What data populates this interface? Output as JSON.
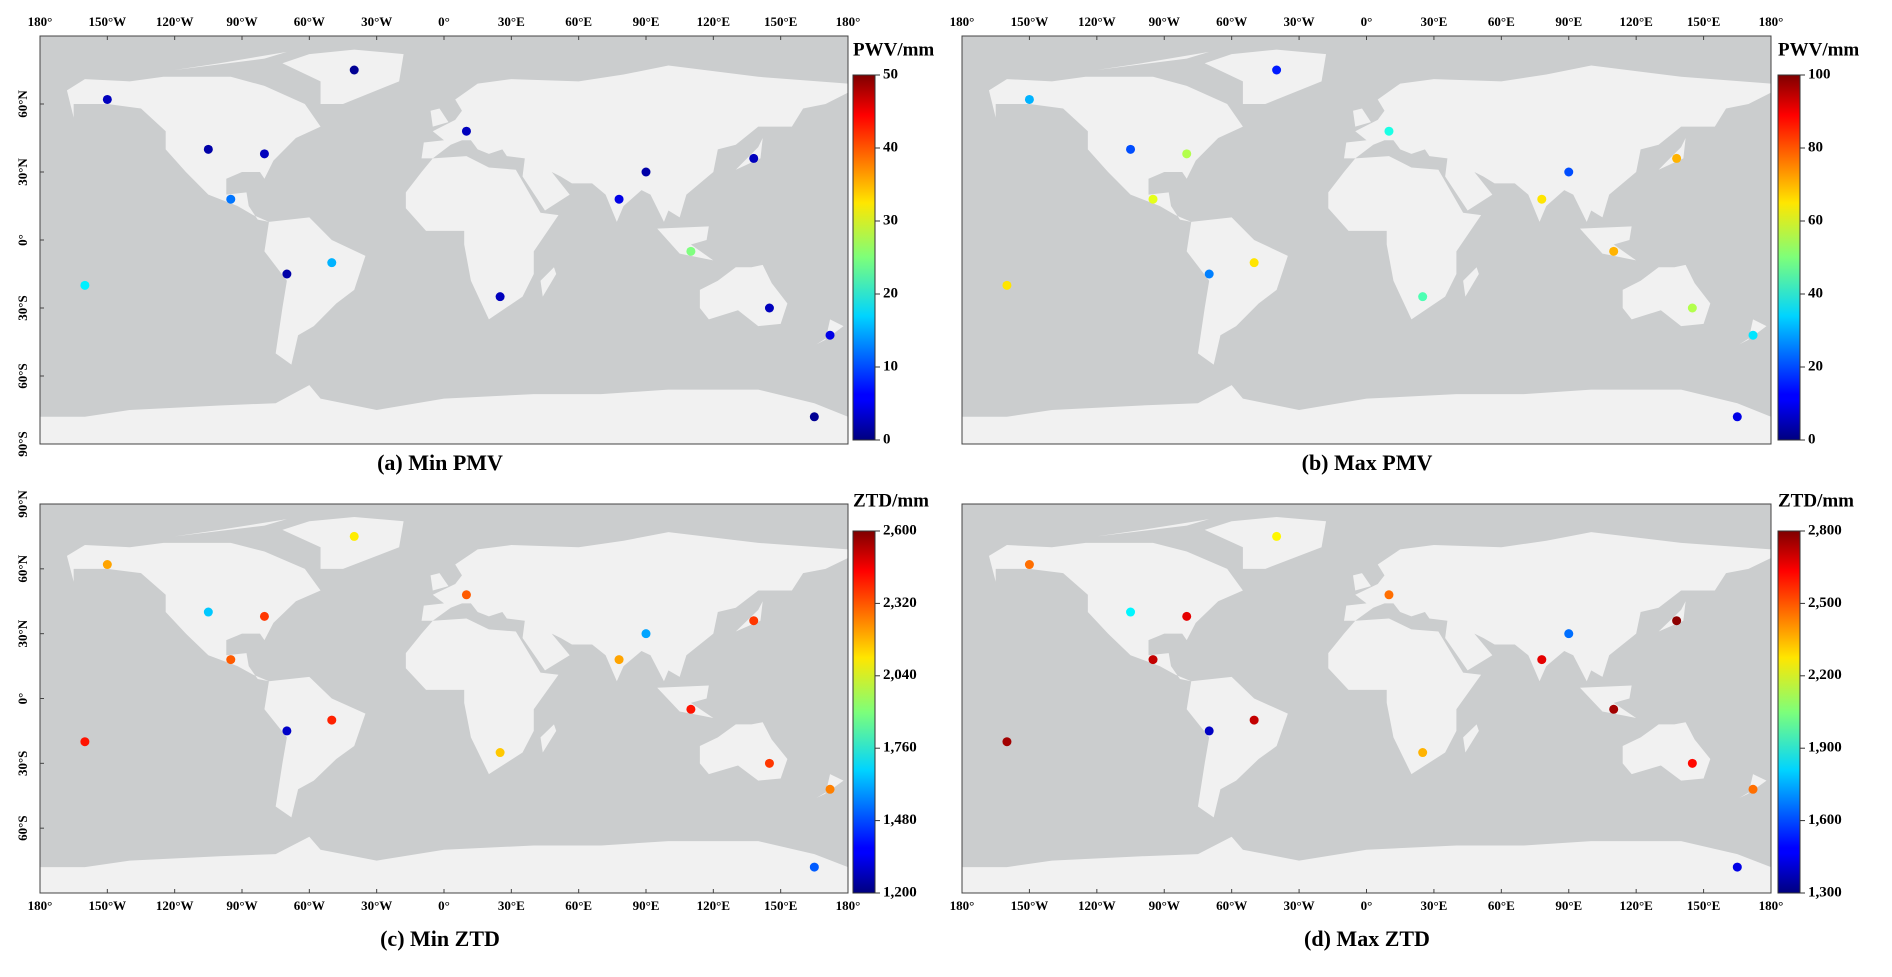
{
  "chart_data": [
    {
      "type": "map",
      "caption": "(a) Min PMV",
      "colorbar": {
        "label": "PWV/mm",
        "lim": [
          0,
          50
        ],
        "ticks": [
          0,
          10,
          20,
          30,
          40,
          50
        ]
      },
      "xlim": [
        -180,
        180
      ],
      "ylim": [
        -90,
        90
      ],
      "xticks": [
        {
          "value": -180,
          "label": "180°"
        },
        {
          "value": -150,
          "label": "150°W"
        },
        {
          "value": -120,
          "label": "120°W"
        },
        {
          "value": -90,
          "label": "90°W"
        },
        {
          "value": -60,
          "label": "60°W"
        },
        {
          "value": -30,
          "label": "30°W"
        },
        {
          "value": 0,
          "label": "0°"
        },
        {
          "value": 30,
          "label": "30°E"
        },
        {
          "value": 60,
          "label": "60°E"
        },
        {
          "value": 90,
          "label": "90°E"
        },
        {
          "value": 120,
          "label": "120°E"
        },
        {
          "value": 150,
          "label": "150°E"
        },
        {
          "value": 180,
          "label": "180°"
        }
      ],
      "yticks": [
        {
          "value": 60,
          "label": "60°N"
        },
        {
          "value": 30,
          "label": "30°N"
        },
        {
          "value": 0,
          "label": "0°"
        },
        {
          "value": -30,
          "label": "30°S"
        },
        {
          "value": -60,
          "label": "60°S"
        },
        {
          "value": -90,
          "label": "90°S"
        }
      ],
      "lon": [
        -150,
        -105,
        -80,
        -95,
        -50,
        -70,
        10,
        90,
        78,
        110,
        145,
        172,
        -40,
        165,
        -160,
        138,
        25
      ],
      "lat": [
        62,
        40,
        38,
        18,
        -10,
        -15,
        48,
        30,
        18,
        -5,
        -30,
        -42,
        75,
        -78,
        -20,
        36,
        -25
      ],
      "values": [
        3,
        2,
        3,
        12,
        15,
        2,
        3,
        2,
        5,
        25,
        3,
        5,
        1,
        1,
        18,
        3,
        3
      ]
    },
    {
      "type": "map",
      "caption": "(b) Max PMV",
      "colorbar": {
        "label": "PWV/mm",
        "lim": [
          0,
          100
        ],
        "ticks": [
          0,
          20,
          40,
          60,
          80,
          100
        ]
      },
      "xlim": [
        -180,
        180
      ],
      "ylim": [
        -90,
        90
      ],
      "xticks": [
        {
          "value": -180,
          "label": "180°"
        },
        {
          "value": -150,
          "label": "150°W"
        },
        {
          "value": -120,
          "label": "120°W"
        },
        {
          "value": -90,
          "label": "90°W"
        },
        {
          "value": -60,
          "label": "60°W"
        },
        {
          "value": -30,
          "label": "30°W"
        },
        {
          "value": 0,
          "label": "0°"
        },
        {
          "value": 30,
          "label": "30°E"
        },
        {
          "value": 60,
          "label": "60°E"
        },
        {
          "value": 90,
          "label": "90°E"
        },
        {
          "value": 120,
          "label": "120°E"
        },
        {
          "value": 150,
          "label": "150°E"
        },
        {
          "value": 180,
          "label": "180°"
        }
      ],
      "yticks": [],
      "lon": [
        -150,
        -105,
        -80,
        -95,
        -50,
        -70,
        10,
        90,
        78,
        110,
        145,
        172,
        -40,
        165,
        -160,
        138,
        25
      ],
      "lat": [
        62,
        40,
        38,
        18,
        -10,
        -15,
        48,
        30,
        18,
        -5,
        -30,
        -42,
        75,
        -78,
        -20,
        36,
        -25
      ],
      "values": [
        30,
        20,
        55,
        60,
        65,
        25,
        40,
        20,
        65,
        70,
        55,
        35,
        15,
        10,
        65,
        70,
        45
      ]
    },
    {
      "type": "map",
      "caption": "(c) Min ZTD",
      "colorbar": {
        "label": "ZTD/mm",
        "lim": [
          1200,
          2600
        ],
        "ticks": [
          {
            "value": 1200,
            "label": "1,200"
          },
          {
            "value": 1480,
            "label": "1,480"
          },
          {
            "value": 1760,
            "label": "1,760"
          },
          {
            "value": 2040,
            "label": "2,040"
          },
          {
            "value": 2320,
            "label": "2,320"
          },
          {
            "value": 2600,
            "label": "2,600"
          }
        ]
      },
      "xlim": [
        -180,
        180
      ],
      "ylim": [
        -90,
        90
      ],
      "xticks": [
        {
          "value": -180,
          "label": "180°"
        },
        {
          "value": -150,
          "label": "150°W"
        },
        {
          "value": -120,
          "label": "120°W"
        },
        {
          "value": -90,
          "label": "90°W"
        },
        {
          "value": -60,
          "label": "60°W"
        },
        {
          "value": -30,
          "label": "30°W"
        },
        {
          "value": 0,
          "label": "0°"
        },
        {
          "value": 30,
          "label": "30°E"
        },
        {
          "value": 60,
          "label": "60°E"
        },
        {
          "value": 90,
          "label": "90°E"
        },
        {
          "value": 120,
          "label": "120°E"
        },
        {
          "value": 150,
          "label": "150°E"
        },
        {
          "value": 180,
          "label": "180°"
        }
      ],
      "yticks": [
        {
          "value": 90,
          "label": "90°N"
        },
        {
          "value": 60,
          "label": "60°N"
        },
        {
          "value": 30,
          "label": "30°N"
        },
        {
          "value": 0,
          "label": "0°"
        },
        {
          "value": -30,
          "label": "30°S"
        },
        {
          "value": -60,
          "label": "60°S"
        }
      ],
      "lon": [
        -150,
        -105,
        -80,
        -95,
        -50,
        -70,
        10,
        90,
        78,
        110,
        145,
        172,
        -40,
        165,
        -160,
        138,
        25
      ],
      "lat": [
        62,
        40,
        38,
        18,
        -10,
        -15,
        48,
        30,
        18,
        -5,
        -30,
        -42,
        75,
        -78,
        -20,
        36,
        -25
      ],
      "values": [
        2200,
        1650,
        2350,
        2300,
        2380,
        1300,
        2300,
        1600,
        2200,
        2400,
        2350,
        2250,
        2100,
        1500,
        2400,
        2350,
        2150
      ]
    },
    {
      "type": "map",
      "caption": "(d) Max ZTD",
      "colorbar": {
        "label": "ZTD/mm",
        "lim": [
          1300,
          2800
        ],
        "ticks": [
          {
            "value": 1300,
            "label": "1,300"
          },
          {
            "value": 1600,
            "label": "1,600"
          },
          {
            "value": 1900,
            "label": "1,900"
          },
          {
            "value": 2200,
            "label": "2,200"
          },
          {
            "value": 2500,
            "label": "2,500"
          },
          {
            "value": 2800,
            "label": "2,800"
          }
        ]
      },
      "xlim": [
        -180,
        180
      ],
      "ylim": [
        -90,
        90
      ],
      "xticks": [
        {
          "value": -180,
          "label": "180°"
        },
        {
          "value": -150,
          "label": "150°W"
        },
        {
          "value": -120,
          "label": "120°W"
        },
        {
          "value": -90,
          "label": "90°W"
        },
        {
          "value": -60,
          "label": "60°W"
        },
        {
          "value": -30,
          "label": "30°W"
        },
        {
          "value": 0,
          "label": "0°"
        },
        {
          "value": 30,
          "label": "30°E"
        },
        {
          "value": 60,
          "label": "60°E"
        },
        {
          "value": 90,
          "label": "90°E"
        },
        {
          "value": 120,
          "label": "120°E"
        },
        {
          "value": 150,
          "label": "150°E"
        },
        {
          "value": 180,
          "label": "180°"
        }
      ],
      "yticks": [],
      "lon": [
        -150,
        -105,
        -80,
        -95,
        -50,
        -70,
        10,
        90,
        78,
        110,
        145,
        172,
        -40,
        165,
        -160,
        138,
        25
      ],
      "lat": [
        62,
        40,
        38,
        18,
        -10,
        -15,
        48,
        30,
        18,
        -5,
        -30,
        -42,
        75,
        -78,
        -20,
        36,
        -25
      ],
      "values": [
        2450,
        1850,
        2650,
        2700,
        2700,
        1400,
        2450,
        1650,
        2650,
        2750,
        2600,
        2450,
        2250,
        1450,
        2750,
        2780,
        2350
      ]
    }
  ]
}
